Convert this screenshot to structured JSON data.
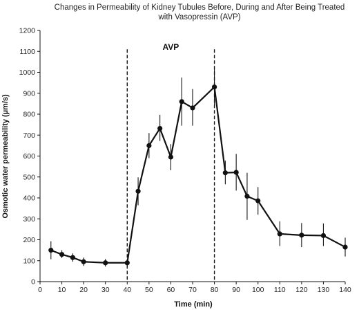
{
  "chart_data": {
    "type": "line",
    "title_line1": "Changes in Permeability of Kidney Tubules Before, During and After Being Treated",
    "title_line2": "with Vasopressin (AVP)",
    "xlabel": "Time (min)",
    "ylabel": "Osmotic water permeability (µm/s)",
    "xlim": [
      0,
      140
    ],
    "ylim": [
      0,
      1200
    ],
    "xticks": [
      0,
      10,
      20,
      30,
      40,
      50,
      60,
      70,
      80,
      90,
      100,
      110,
      120,
      130,
      140
    ],
    "yticks": [
      0,
      100,
      200,
      300,
      400,
      500,
      600,
      700,
      800,
      900,
      1000,
      1100,
      1200
    ],
    "grid": false,
    "series": [
      {
        "x": [
          5,
          10,
          15,
          20,
          30,
          40,
          45,
          50,
          55,
          60,
          65,
          70,
          80,
          85,
          90,
          95,
          100,
          110,
          120,
          130,
          140
        ],
        "y": [
          150,
          130,
          115,
          95,
          90,
          90,
          432,
          650,
          732,
          595,
          860,
          830,
          930,
          520,
          522,
          408,
          386,
          228,
          222,
          220,
          165
        ],
        "err_low": [
          107,
          113,
          95,
          75,
          72,
          72,
          365,
          590,
          672,
          532,
          745,
          745,
          840,
          465,
          435,
          295,
          320,
          170,
          165,
          170,
          120
        ],
        "err_high": [
          193,
          150,
          135,
          115,
          108,
          108,
          498,
          710,
          797,
          657,
          975,
          920,
          1015,
          578,
          610,
          520,
          452,
          288,
          280,
          278,
          210
        ]
      }
    ],
    "annotations": {
      "vlines": [
        40,
        80
      ],
      "label": "AVP",
      "label_x": 60,
      "label_y": 1120
    }
  }
}
